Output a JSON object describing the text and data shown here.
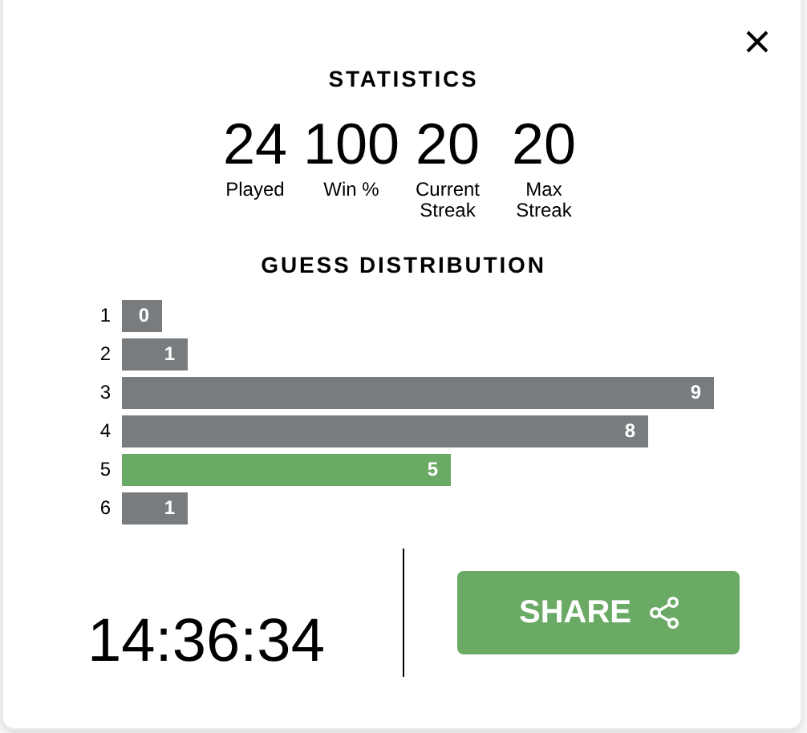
{
  "chart_data": [
    {
      "type": "other",
      "title": "STATISTICS",
      "categories": [
        "Played",
        "Win %",
        "Current Streak",
        "Max Streak"
      ],
      "values": [
        24,
        100,
        20,
        20
      ],
      "data_labels": true
    },
    {
      "type": "bar",
      "orientation": "horizontal",
      "title": "GUESS DISTRIBUTION",
      "categories": [
        "1",
        "2",
        "3",
        "4",
        "5",
        "6"
      ],
      "values": [
        0,
        1,
        9,
        8,
        5,
        1
      ],
      "colors": [
        "#787c7e",
        "#787c7e",
        "#787c7e",
        "#787c7e",
        "#6aaa64",
        "#787c7e"
      ],
      "data_labels": true
    },
    {
      "type": "other",
      "annotations": [
        "14:36:34",
        "SHARE"
      ]
    }
  ]
}
